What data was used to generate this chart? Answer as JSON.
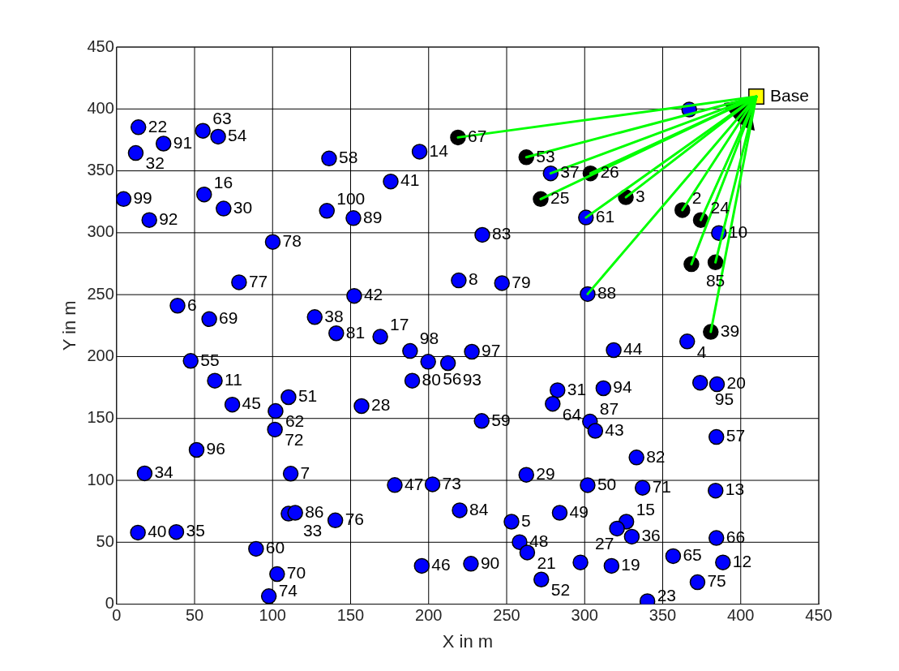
{
  "chart_data": {
    "type": "scatter",
    "xlabel": "X in m",
    "ylabel": "Y in m",
    "xlim": [
      0,
      450
    ],
    "ylim": [
      0,
      450
    ],
    "xticks": [
      0,
      50,
      100,
      150,
      200,
      250,
      300,
      350,
      400,
      450
    ],
    "yticks": [
      0,
      50,
      100,
      150,
      200,
      250,
      300,
      350,
      400,
      450
    ],
    "grid": true,
    "series": [
      {
        "type": "line",
        "color": "#00ff00",
        "x": [
          218.8,
          410
        ],
        "values": [
          377,
          410
        ]
      },
      {
        "type": "line",
        "color": "#00ff00",
        "x": [
          262.6,
          410
        ],
        "values": [
          361,
          410
        ]
      },
      {
        "type": "line",
        "color": "#00ff00",
        "x": [
          278.2,
          410
        ],
        "values": [
          348,
          410
        ]
      },
      {
        "type": "line",
        "color": "#00ff00",
        "x": [
          271.8,
          410
        ],
        "values": [
          327.2,
          410
        ]
      },
      {
        "type": "line",
        "color": "#00ff00",
        "x": [
          303.7,
          410
        ],
        "values": [
          348,
          410
        ]
      },
      {
        "type": "line",
        "color": "#00ff00",
        "x": [
          326.4,
          410
        ],
        "values": [
          328.7,
          410
        ]
      },
      {
        "type": "line",
        "color": "#00ff00",
        "x": [
          300.8,
          410
        ],
        "values": [
          312.3,
          410
        ]
      },
      {
        "type": "line",
        "color": "#00ff00",
        "x": [
          301.9,
          410
        ],
        "values": [
          250.5,
          410
        ]
      },
      {
        "type": "line",
        "color": "#00ff00",
        "x": [
          362.6,
          410
        ],
        "values": [
          318.3,
          410
        ]
      },
      {
        "type": "line",
        "color": "#00ff00",
        "x": [
          374.4,
          410
        ],
        "values": [
          310.3,
          410
        ]
      },
      {
        "type": "line",
        "color": "#00ff00",
        "x": [
          368.4,
          410
        ],
        "values": [
          274.6,
          410
        ]
      },
      {
        "type": "line",
        "color": "#00ff00",
        "x": [
          383.8,
          410
        ],
        "values": [
          276.1,
          410
        ]
      },
      {
        "type": "line",
        "color": "#00ff00",
        "x": [
          380.8,
          410
        ],
        "values": [
          219.9,
          410
        ]
      },
      {
        "color": "#0000ff",
        "marker": "circle",
        "x": [
          14.0,
          30.1,
          12.3,
          55.3,
          65.1,
          136.2,
          4.5,
          21.0,
          56.1,
          68.6,
          134.8,
          100.1,
          78.5,
          39.1,
          59.4,
          127.0,
          140.8,
          152.3,
          151.8,
          194.2,
          278.2,
          175.7,
          234.4,
          219.3,
          247.0,
          169.0,
          300.8,
          367.0,
          386.0,
          301.9,
          365.7,
          47.5,
          63.0,
          74.2,
          110.2,
          101.9,
          101.5,
          51.3,
          18.0,
          111.6,
          110.2,
          114.5,
          140.2,
          13.7,
          38.3,
          89.4,
          102.9,
          97.6,
          188.1,
          199.7,
          212.4,
          227.7,
          189.5,
          157.0,
          282.6,
          279.5,
          234.0,
          262.6,
          178.3,
          202.5,
          219.9,
          253.1,
          284.0,
          258.3,
          263.2,
          195.6,
          227.1,
          272.2,
          318.6,
          312.0,
          374.0,
          384.8,
          303.4,
          306.8,
          384.4,
          333.2,
          301.9,
          337.1,
          383.9,
          326.7,
          320.7,
          330.2,
          384.4,
          297.3,
          317.2,
          356.7,
          388.6,
          372.3,
          340.2
        ],
        "values": [
          385.2,
          372.0,
          364.4,
          382.4,
          377.6,
          360.0,
          327.2,
          310.3,
          330.9,
          319.5,
          317.7,
          292.6,
          260.0,
          241.1,
          230.2,
          231.9,
          218.8,
          249.0,
          311.8,
          365.5,
          348.0,
          341.4,
          298.3,
          261.5,
          259.3,
          216.0,
          312.3,
          399.5,
          299.8,
          250.5,
          212.2,
          196.5,
          180.5,
          161.2,
          167.2,
          156.0,
          141.0,
          124.6,
          105.6,
          105.4,
          73.1,
          73.8,
          67.7,
          57.8,
          58.3,
          44.7,
          24.3,
          6.4,
          204.5,
          195.8,
          194.7,
          203.9,
          180.5,
          160.0,
          172.8,
          161.8,
          148.0,
          104.5,
          96.2,
          96.8,
          75.8,
          66.6,
          73.8,
          50.1,
          41.7,
          30.9,
          32.6,
          19.9,
          205.2,
          174.4,
          178.9,
          177.6,
          147.5,
          140.0,
          135.0,
          118.5,
          96.1,
          94.0,
          91.7,
          66.6,
          61.1,
          54.5,
          53.4,
          33.7,
          30.9,
          38.8,
          33.7,
          17.7,
          2.4
        ]
      },
      {
        "color": "#000000",
        "marker": "circle",
        "x": [
          218.8,
          262.6,
          271.8,
          303.7,
          326.4,
          362.6,
          374.4,
          368.4,
          383.8,
          380.8
        ],
        "values": [
          377,
          361,
          327.2,
          348,
          328.7,
          318.3,
          310.3,
          274.6,
          276.1,
          219.9
        ]
      },
      {
        "color": "#ffff00",
        "marker": "square",
        "x": [
          410
        ],
        "values": [
          410
        ]
      }
    ],
    "annotations": [
      {
        "text": "22",
        "x": 14.0,
        "y": 385.2
      },
      {
        "text": "91",
        "x": 30.1,
        "y": 372.0
      },
      {
        "text": "32",
        "x": 12.3,
        "y": 364.4
      },
      {
        "text": "63",
        "x": 55.3,
        "y": 382.4
      },
      {
        "text": "54",
        "x": 65.1,
        "y": 377.6
      },
      {
        "text": "58",
        "x": 136.2,
        "y": 360.0
      },
      {
        "text": "99",
        "x": 4.5,
        "y": 327.2
      },
      {
        "text": "92",
        "x": 21.0,
        "y": 310.3
      },
      {
        "text": "16",
        "x": 56.1,
        "y": 330.9
      },
      {
        "text": "30",
        "x": 68.6,
        "y": 319.5
      },
      {
        "text": "100",
        "x": 134.8,
        "y": 317.7
      },
      {
        "text": "78",
        "x": 100.1,
        "y": 292.6
      },
      {
        "text": "77",
        "x": 78.5,
        "y": 260.0
      },
      {
        "text": "6",
        "x": 39.1,
        "y": 241.1
      },
      {
        "text": "69",
        "x": 59.4,
        "y": 230.2
      },
      {
        "text": "38",
        "x": 127.0,
        "y": 231.9
      },
      {
        "text": "81",
        "x": 140.8,
        "y": 218.8
      },
      {
        "text": "42",
        "x": 152.3,
        "y": 249.0
      },
      {
        "text": "89",
        "x": 151.8,
        "y": 311.8
      },
      {
        "text": "14",
        "x": 194.2,
        "y": 365.5
      },
      {
        "text": "37",
        "x": 278.2,
        "y": 348.0
      },
      {
        "text": "41",
        "x": 175.7,
        "y": 341.4
      },
      {
        "text": "83",
        "x": 234.4,
        "y": 298.3
      },
      {
        "text": "8",
        "x": 219.3,
        "y": 261.5
      },
      {
        "text": "79",
        "x": 247.0,
        "y": 259.3
      },
      {
        "text": "17",
        "x": 169.0,
        "y": 216.0
      },
      {
        "text": "61",
        "x": 300.8,
        "y": 312.3
      },
      {
        "text": "10",
        "x": 386.0,
        "y": 299.8
      },
      {
        "text": "88",
        "x": 301.9,
        "y": 250.5
      },
      {
        "text": "4",
        "x": 365.7,
        "y": 212.2
      },
      {
        "text": "55",
        "x": 47.5,
        "y": 196.5
      },
      {
        "text": "11",
        "x": 63.0,
        "y": 180.5
      },
      {
        "text": "45",
        "x": 74.2,
        "y": 161.2
      },
      {
        "text": "51",
        "x": 110.2,
        "y": 167.2
      },
      {
        "text": "62",
        "x": 101.9,
        "y": 156.0
      },
      {
        "text": "72",
        "x": 101.5,
        "y": 141.0
      },
      {
        "text": "96",
        "x": 51.3,
        "y": 124.6
      },
      {
        "text": "34",
        "x": 18.0,
        "y": 105.6
      },
      {
        "text": "7",
        "x": 111.6,
        "y": 105.4
      },
      {
        "text": "33",
        "x": 110.2,
        "y": 73.1
      },
      {
        "text": "86",
        "x": 114.5,
        "y": 73.8
      },
      {
        "text": "76",
        "x": 140.2,
        "y": 67.7
      },
      {
        "text": "40",
        "x": 13.7,
        "y": 57.8
      },
      {
        "text": "35",
        "x": 38.3,
        "y": 58.3
      },
      {
        "text": "60",
        "x": 89.4,
        "y": 44.7
      },
      {
        "text": "70",
        "x": 102.9,
        "y": 24.3
      },
      {
        "text": "74",
        "x": 97.6,
        "y": 6.4
      },
      {
        "text": "98",
        "x": 188.1,
        "y": 204.5
      },
      {
        "text": "56",
        "x": 199.7,
        "y": 195.8
      },
      {
        "text": "93",
        "x": 212.4,
        "y": 194.7
      },
      {
        "text": "97",
        "x": 227.7,
        "y": 203.9
      },
      {
        "text": "80",
        "x": 189.5,
        "y": 180.5
      },
      {
        "text": "28",
        "x": 157.0,
        "y": 160.0
      },
      {
        "text": "31",
        "x": 282.6,
        "y": 172.8
      },
      {
        "text": "64",
        "x": 279.5,
        "y": 161.8
      },
      {
        "text": "59",
        "x": 234.0,
        "y": 148.0
      },
      {
        "text": "29",
        "x": 262.6,
        "y": 104.5
      },
      {
        "text": "47",
        "x": 178.3,
        "y": 96.2
      },
      {
        "text": "73",
        "x": 202.5,
        "y": 96.8
      },
      {
        "text": "84",
        "x": 219.9,
        "y": 75.8
      },
      {
        "text": "5",
        "x": 253.1,
        "y": 66.6
      },
      {
        "text": "49",
        "x": 284.0,
        "y": 73.8
      },
      {
        "text": "48",
        "x": 258.3,
        "y": 50.1
      },
      {
        "text": "21",
        "x": 263.2,
        "y": 41.7
      },
      {
        "text": "46",
        "x": 195.6,
        "y": 30.9
      },
      {
        "text": "90",
        "x": 227.1,
        "y": 32.6
      },
      {
        "text": "52",
        "x": 272.2,
        "y": 19.9
      },
      {
        "text": "44",
        "x": 318.6,
        "y": 205.2
      },
      {
        "text": "94",
        "x": 312.0,
        "y": 174.4
      },
      {
        "text": "95",
        "x": 374.0,
        "y": 178.9
      },
      {
        "text": "20",
        "x": 384.8,
        "y": 177.6
      },
      {
        "text": "87",
        "x": 303.4,
        "y": 147.5
      },
      {
        "text": "43",
        "x": 306.8,
        "y": 140.0
      },
      {
        "text": "57",
        "x": 384.4,
        "y": 135.0
      },
      {
        "text": "82",
        "x": 333.2,
        "y": 118.5
      },
      {
        "text": "50",
        "x": 301.9,
        "y": 96.1
      },
      {
        "text": "71",
        "x": 337.1,
        "y": 94.0
      },
      {
        "text": "13",
        "x": 383.9,
        "y": 91.7
      },
      {
        "text": "15",
        "x": 326.7,
        "y": 66.6
      },
      {
        "text": "36",
        "x": 330.2,
        "y": 54.5
      },
      {
        "text": "66",
        "x": 384.4,
        "y": 53.4
      },
      {
        "text": "27",
        "x": 297.3,
        "y": 33.7
      },
      {
        "text": "19",
        "x": 317.2,
        "y": 30.9
      },
      {
        "text": "65",
        "x": 356.7,
        "y": 38.8
      },
      {
        "text": "12",
        "x": 388.6,
        "y": 33.7
      },
      {
        "text": "75",
        "x": 372.3,
        "y": 17.7
      },
      {
        "text": "23",
        "x": 340.2,
        "y": 2.4
      },
      {
        "text": "67",
        "x": 218.8,
        "y": 377
      },
      {
        "text": "53",
        "x": 262.6,
        "y": 361
      },
      {
        "text": "25",
        "x": 271.8,
        "y": 327.2
      },
      {
        "text": "26",
        "x": 303.7,
        "y": 348
      },
      {
        "text": "3",
        "x": 326.4,
        "y": 328.7
      },
      {
        "text": "2",
        "x": 362.6,
        "y": 318.3
      },
      {
        "text": "24",
        "x": 374.4,
        "y": 310.3
      },
      {
        "text": "85",
        "x": 368.4,
        "y": 274.6
      },
      {
        "text": "39",
        "x": 380.8,
        "y": 219.9
      },
      {
        "text": "Base",
        "x": 410,
        "y": 410
      }
    ]
  }
}
